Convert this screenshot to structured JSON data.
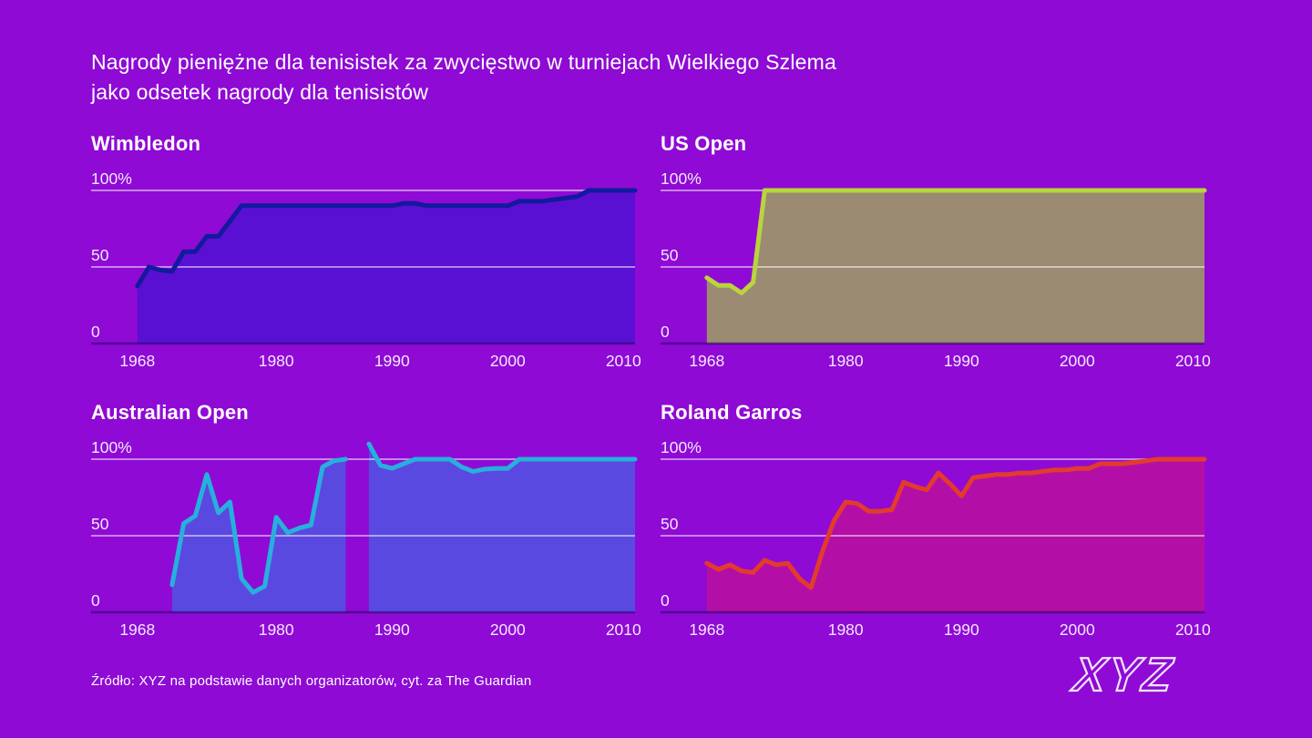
{
  "title": {
    "line1": "Nagrody pieniężne dla tenisistek za zwycięstwo w turniejach Wielkiego Szlema",
    "line2": "jako odsetek nagrody dla tenisistów"
  },
  "source": {
    "text": "Źródło: XYZ na podstawie danych organizatorów, cyt. za The Guardian"
  },
  "logo": {
    "text": "XYZ"
  },
  "colors": {
    "background": "#8f0ad5",
    "text": "#ffffff",
    "tick_text": "#f3e8ff",
    "gridline": "rgba(255,255,255,0.5)",
    "axis_line": "rgba(22,0,88,0.5)"
  },
  "chart_data": {
    "type": "area",
    "unit": "percent",
    "grid": "horizontal-only",
    "legend": "none",
    "x_domain": [
      1964,
      2011
    ],
    "y_domain": [
      0,
      112
    ],
    "x_ticks": [
      1968,
      1980,
      1990,
      2000,
      2010
    ],
    "y_ticks": [
      {
        "label": "100%",
        "value": 100
      },
      {
        "label": "50",
        "value": 50
      },
      {
        "label": "0",
        "value": 0
      }
    ],
    "charts": [
      {
        "title": "Wimbledon",
        "line_color": "#121a9e",
        "fill_color": "#5a10d2",
        "segments": [
          {
            "years": [
              1968,
              1969,
              1970,
              1971,
              1972,
              1973,
              1974,
              1975,
              1976,
              1977,
              1978,
              1979,
              1980,
              1981,
              1982,
              1983,
              1984,
              1985,
              1986,
              1987,
              1988,
              1989,
              1990,
              1991,
              1992,
              1993,
              1994,
              1995,
              1996,
              1997,
              1998,
              1999,
              2000,
              2001,
              2002,
              2003,
              2004,
              2005,
              2006,
              2007,
              2008,
              2009,
              2010,
              2011
            ],
            "values": [
              37.5,
              50,
              48,
              47,
              60,
              60,
              70,
              70,
              80,
              90,
              90,
              90,
              90,
              90,
              90,
              90,
              90,
              90,
              90,
              90,
              90,
              90,
              90,
              91.5,
              91.5,
              90,
              90,
              90,
              90,
              90,
              90,
              90,
              90,
              93,
              93,
              93,
              94,
              95,
              96,
              100,
              100,
              100,
              100,
              100
            ]
          }
        ]
      },
      {
        "title": "US Open",
        "line_color": "#b9d53b",
        "fill_color": "#9b8b73",
        "segments": [
          {
            "years": [
              1968,
              1969,
              1970,
              1971,
              1972,
              1973,
              1974,
              1975,
              1976,
              1977,
              1978,
              1979,
              1980,
              1981,
              1982,
              1983,
              1984,
              1985,
              1986,
              1987,
              1988,
              1989,
              1990,
              1991,
              1992,
              1993,
              1994,
              1995,
              1996,
              1997,
              1998,
              1999,
              2000,
              2001,
              2002,
              2003,
              2004,
              2005,
              2006,
              2007,
              2008,
              2009,
              2010,
              2011
            ],
            "values": [
              43,
              38,
              38,
              33,
              40,
              100,
              100,
              100,
              100,
              100,
              100,
              100,
              100,
              100,
              100,
              100,
              100,
              100,
              100,
              100,
              100,
              100,
              100,
              100,
              100,
              100,
              100,
              100,
              100,
              100,
              100,
              100,
              100,
              100,
              100,
              100,
              100,
              100,
              100,
              100,
              100,
              100,
              100,
              100
            ]
          }
        ]
      },
      {
        "title": "Australian Open",
        "line_color": "#27b0dc",
        "fill_color": "#5a49e0",
        "segments": [
          {
            "years": [
              1971,
              1972,
              1973,
              1974,
              1975,
              1976,
              1977,
              1978,
              1979,
              1980,
              1981,
              1982,
              1983,
              1984,
              1985,
              1986
            ],
            "values": [
              18,
              58,
              63,
              90,
              65,
              72,
              22,
              13,
              17,
              62,
              52,
              55,
              57,
              95,
              99,
              100
            ]
          },
          {
            "years": [
              1988,
              1989,
              1990,
              1991,
              1992,
              1993,
              1994,
              1995,
              1996,
              1997,
              1998,
              1999,
              2000,
              2001,
              2002,
              2003,
              2004,
              2005,
              2006,
              2007,
              2008,
              2009,
              2010,
              2011
            ],
            "values": [
              110,
              96,
              94,
              97,
              100,
              100,
              100,
              100,
              95,
              92,
              93.5,
              94,
              94,
              100,
              100,
              100,
              100,
              100,
              100,
              100,
              100,
              100,
              100,
              100
            ]
          }
        ]
      },
      {
        "title": "Roland Garros",
        "line_color": "#e33b2c",
        "fill_color": "#b30fa6",
        "segments": [
          {
            "years": [
              1968,
              1969,
              1970,
              1971,
              1972,
              1973,
              1974,
              1975,
              1976,
              1977,
              1978,
              1979,
              1980,
              1981,
              1982,
              1983,
              1984,
              1985,
              1986,
              1987,
              1988,
              1989,
              1990,
              1991,
              1992,
              1993,
              1994,
              1995,
              1996,
              1997,
              1998,
              1999,
              2000,
              2001,
              2002,
              2003,
              2004,
              2005,
              2006,
              2007,
              2008,
              2009,
              2010,
              2011
            ],
            "values": [
              32,
              28,
              31,
              27,
              26,
              34,
              31,
              32,
              22,
              16,
              40,
              60,
              72,
              71,
              66,
              66,
              67,
              85,
              82,
              80,
              91,
              84,
              76,
              88,
              89,
              90,
              90,
              91,
              91,
              92,
              93,
              93,
              94,
              94,
              97,
              97,
              97,
              98,
              99,
              100,
              100,
              100,
              100,
              100
            ]
          }
        ]
      }
    ]
  }
}
